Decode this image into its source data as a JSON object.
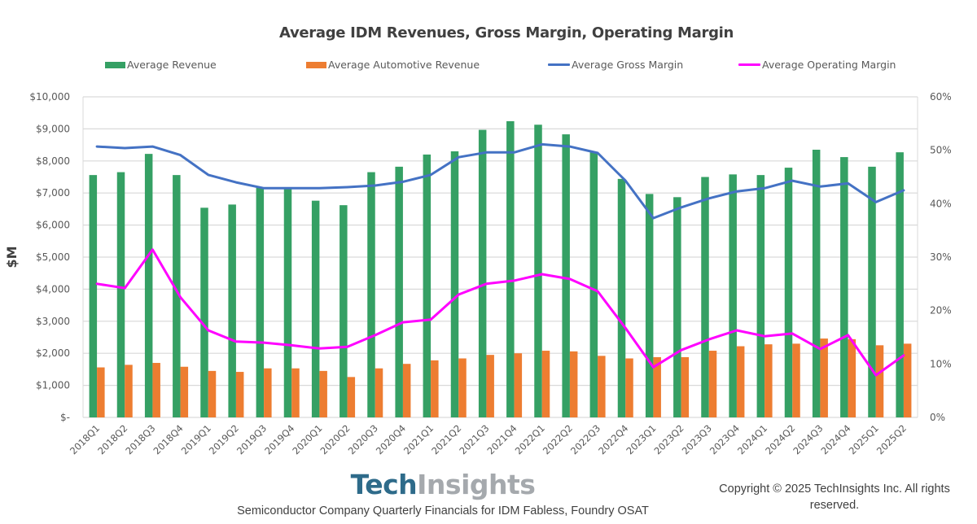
{
  "chart_data": {
    "type": "bar",
    "title": "Average IDM Revenues, Gross Margin, Operating Margin",
    "xlabel": "",
    "ylabel": "$M",
    "y2label": "",
    "ylim": [
      0,
      10000
    ],
    "y2lim": [
      0,
      60
    ],
    "grid": true,
    "legend_position": "top",
    "yticks": [
      "$-",
      "$1,000",
      "$2,000",
      "$3,000",
      "$4,000",
      "$5,000",
      "$6,000",
      "$7,000",
      "$8,000",
      "$9,000",
      "$10,000"
    ],
    "y2ticks": [
      "0%",
      "10%",
      "20%",
      "30%",
      "40%",
      "50%",
      "60%"
    ],
    "categories": [
      "2018Q1",
      "2018Q2",
      "2018Q3",
      "2018Q4",
      "2019Q1",
      "2019Q2",
      "2019Q3",
      "2019Q4",
      "2020Q1",
      "2020Q2",
      "2020Q3",
      "2020Q4",
      "2021Q1",
      "2021Q2",
      "2021Q3",
      "2021Q4",
      "2022Q1",
      "2022Q2",
      "2022Q3",
      "2022Q4",
      "2023Q1",
      "2023Q2",
      "2023Q3",
      "2023Q4",
      "2024Q1",
      "2024Q2",
      "2024Q3",
      "2024Q4",
      "2025Q1",
      "2025Q2"
    ],
    "series": [
      {
        "name": "Average Revenue",
        "type": "bar",
        "axis": "left",
        "color": "#35A064",
        "values": [
          7560,
          7650,
          8220,
          7560,
          6540,
          6640,
          7180,
          7150,
          6760,
          6620,
          7650,
          7820,
          8200,
          8300,
          8970,
          9240,
          9130,
          8830,
          8270,
          7440,
          6970,
          6870,
          7500,
          7580,
          7560,
          7790,
          8350,
          8120,
          7820,
          8270
        ]
      },
      {
        "name": "Average Automotive Revenue",
        "type": "bar",
        "axis": "left",
        "color": "#ED7D31",
        "values": [
          1560,
          1640,
          1700,
          1580,
          1450,
          1420,
          1530,
          1530,
          1450,
          1260,
          1530,
          1670,
          1780,
          1840,
          1950,
          2000,
          2080,
          2060,
          1920,
          1840,
          1880,
          1880,
          2080,
          2220,
          2280,
          2300,
          2460,
          2440,
          2250,
          2300
        ]
      },
      {
        "name": "Average Gross Margin",
        "type": "line",
        "axis": "right",
        "unit": "%",
        "color": "#4472C4",
        "values": [
          50.7,
          50.4,
          50.7,
          49.1,
          45.4,
          44.0,
          42.9,
          42.9,
          42.9,
          43.1,
          43.4,
          44.1,
          45.4,
          48.7,
          49.6,
          49.6,
          51.1,
          50.7,
          49.5,
          44.3,
          37.3,
          39.3,
          41.0,
          42.3,
          42.9,
          44.3,
          43.2,
          43.8,
          40.3,
          42.5
        ]
      },
      {
        "name": "Average Operating Margin",
        "type": "line",
        "axis": "right",
        "unit": "%",
        "color": "#FF00FF",
        "values": [
          25.0,
          24.2,
          31.4,
          22.5,
          16.3,
          14.2,
          14.0,
          13.5,
          12.9,
          13.2,
          15.4,
          17.8,
          18.3,
          23.0,
          25.0,
          25.6,
          26.8,
          25.9,
          23.6,
          16.7,
          9.4,
          12.6,
          14.6,
          16.3,
          15.2,
          15.7,
          12.8,
          15.4,
          7.9,
          11.6
        ]
      }
    ]
  },
  "footer": {
    "logo_part1": "Tech",
    "logo_part2": "Insights",
    "subtitle": "Semiconductor Company Quarterly Financials  for IDM Fabless, Foundry OSAT",
    "copyright": "Copyright © 2025 TechInsights Inc.  All rights reserved."
  },
  "colors": {
    "gridline": "#D9D9D9",
    "axis_text": "#595959",
    "title_text": "#404040"
  }
}
